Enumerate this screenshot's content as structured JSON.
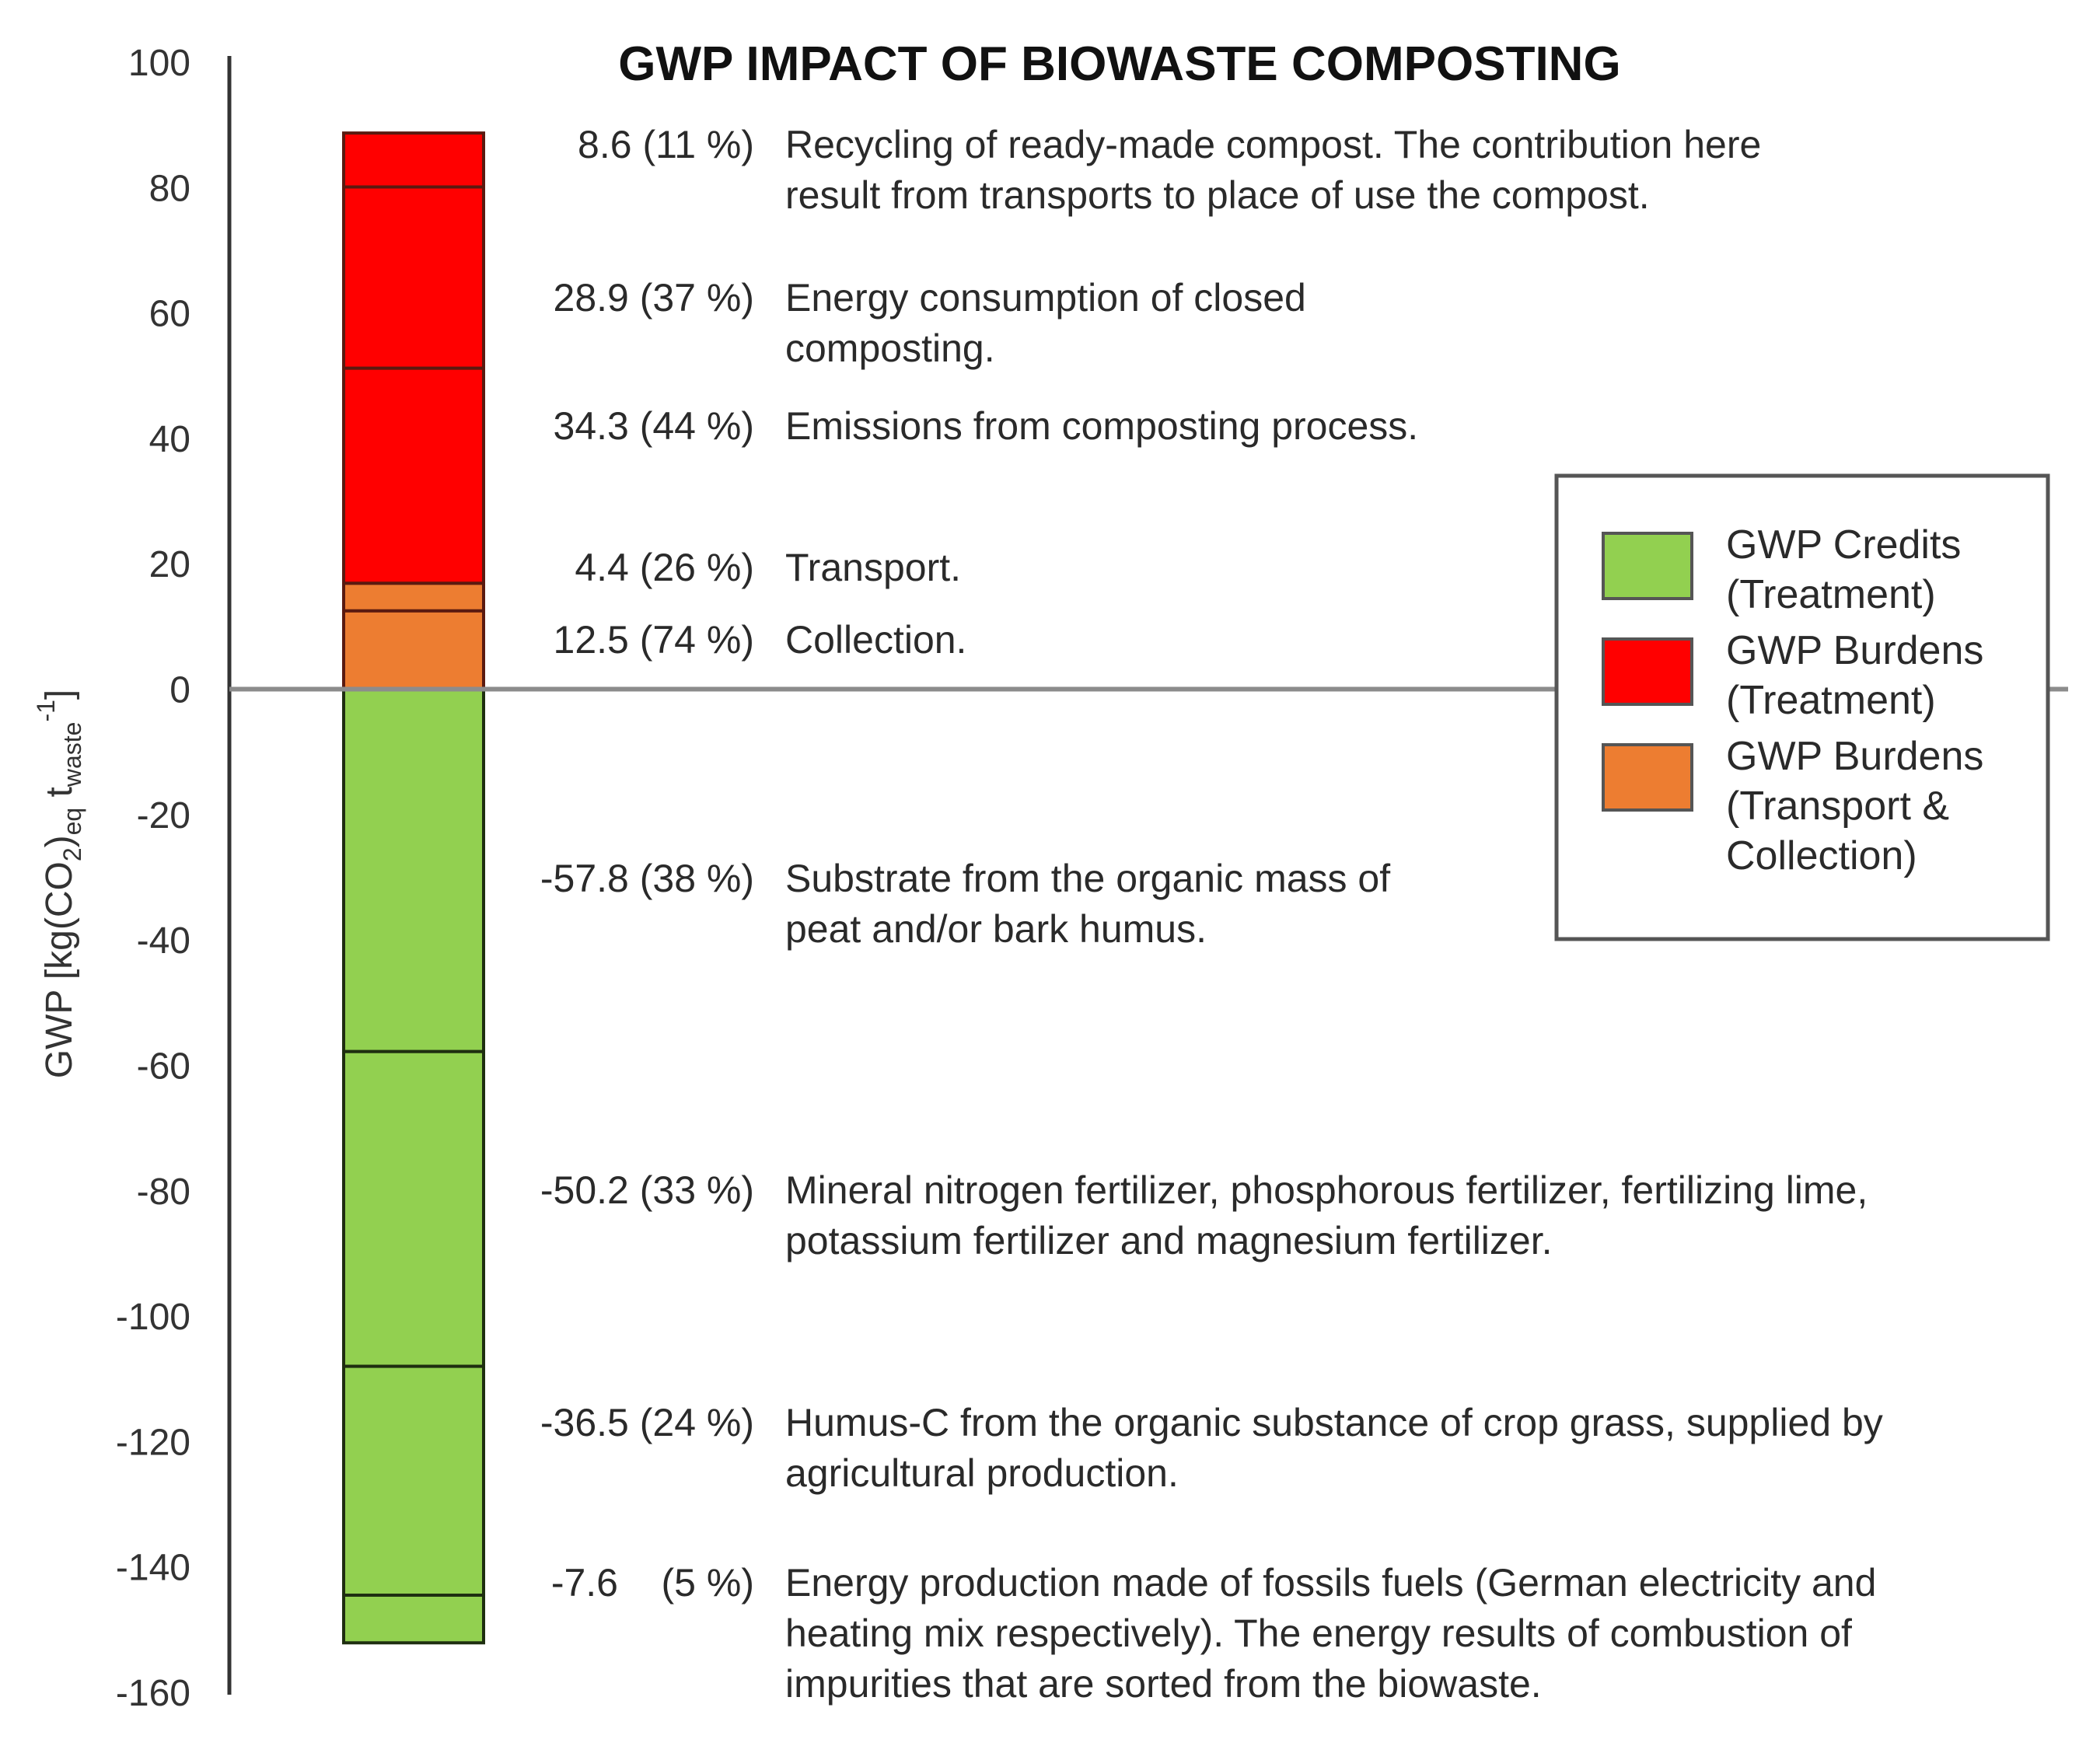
{
  "chart_data": {
    "type": "bar",
    "subtype": "stacked-single-column",
    "title": "GWP IMPACT OF BIOWASTE COMPOSTING",
    "ylabel": {
      "main": "GWP [kg(CO",
      "sub1": "2",
      "mid1": ")",
      "sub2": "eq",
      "mid2": " t",
      "sub3": "waste",
      "sup": "-1",
      "end": "]"
    },
    "ylim": [
      -160,
      100
    ],
    "yticks": [
      "100",
      "80",
      "60",
      "40",
      "20",
      "0",
      "-20",
      "-40",
      "-60",
      "-80",
      "-100",
      "-120",
      "-140",
      "-160"
    ],
    "ytick_values": [
      100,
      80,
      60,
      40,
      20,
      0,
      -20,
      -40,
      -60,
      -80,
      -100,
      -120,
      -140,
      -160
    ],
    "segments": [
      {
        "category": "collection",
        "value": 12.5,
        "label": "12.5 (74 %)",
        "desc": [
          "Collection."
        ]
      },
      {
        "category": "transport",
        "value": 4.4,
        "label": "4.4 (26 %)",
        "desc": [
          "Transport."
        ]
      },
      {
        "category": "treatment_burden",
        "value": 34.3,
        "label": "34.3 (44 %)",
        "desc": [
          "Emissions from composting process."
        ]
      },
      {
        "category": "treatment_burden",
        "value": 28.9,
        "label": "28.9 (37 %)",
        "desc": [
          "Energy consumption of closed",
          "composting."
        ]
      },
      {
        "category": "treatment_burden",
        "value": 8.6,
        "label": "8.6 (11 %)",
        "desc": [
          "Recycling of ready-made compost. The contribution here",
          "result from transports to place of use the compost."
        ]
      },
      {
        "category": "credit",
        "value": -57.8,
        "label": "-57.8 (38 %)",
        "desc": [
          "Substrate from the organic mass of",
          "peat and/or bark humus."
        ]
      },
      {
        "category": "credit",
        "value": -50.2,
        "label": "-50.2 (33 %)",
        "desc": [
          "Mineral nitrogen fertilizer, phosphorous fertilizer, fertilizing lime,",
          "potassium fertilizer and magnesium fertilizer."
        ]
      },
      {
        "category": "credit",
        "value": -36.5,
        "label": "-36.5 (24 %)",
        "desc": [
          "Humus-C from the organic substance of crop grass, supplied by",
          "agricultural production."
        ]
      },
      {
        "category": "credit",
        "value": -7.6,
        "label": "-7.6    (5 %)",
        "desc": [
          "Energy production made of fossils fuels (German electricity and",
          "heating mix respectively). The energy results of combustion of",
          "impurities that are sorted from the biowaste."
        ]
      }
    ],
    "legend": {
      "position": "right",
      "entries": [
        {
          "key": "credit",
          "lines": [
            "GWP Credits",
            "(Treatment)"
          ],
          "color": "#92d050"
        },
        {
          "key": "treatment_burden",
          "lines": [
            "GWP Burdens",
            "(Treatment)"
          ],
          "color": "#ff0000"
        },
        {
          "key": "transport_collection",
          "lines": [
            "GWP Burdens",
            "(Transport &",
            "Collection)"
          ],
          "color": "#ed7d31"
        }
      ]
    },
    "colors": {
      "credit": "#92d050",
      "treatment_burden": "#ff0000",
      "collection": "#ed7d31",
      "transport": "#ed7d31",
      "divider": "#5a1a10",
      "credit_divider": "#1e2e10",
      "axis": "#333333",
      "zero_line": "#8c8c8c"
    }
  }
}
